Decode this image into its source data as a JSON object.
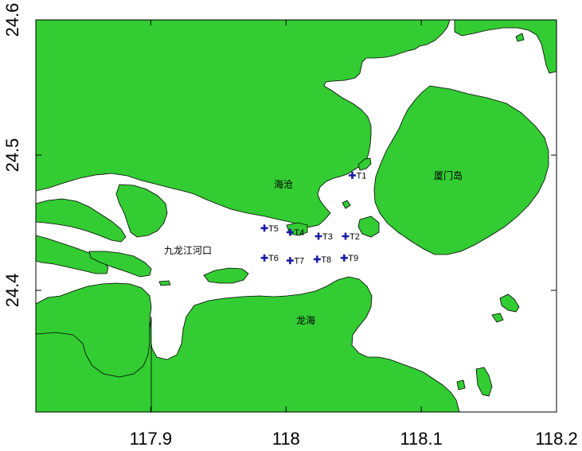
{
  "map": {
    "x_ticks": [
      {
        "value": 117.9,
        "label": "117.9"
      },
      {
        "value": 118.0,
        "label": "118"
      },
      {
        "value": 118.1,
        "label": "118.1"
      },
      {
        "value": 118.2,
        "label": "118.2"
      }
    ],
    "y_ticks": [
      {
        "value": 24.6,
        "label": "24.6"
      },
      {
        "value": 24.5,
        "label": "24.5"
      },
      {
        "value": 24.4,
        "label": "24.4"
      }
    ],
    "xlim": [
      117.815,
      118.2
    ],
    "ylim": [
      24.31,
      24.6
    ],
    "land_color": "#33cc33",
    "marker_color": "#1a1aa6"
  },
  "places": [
    {
      "name": "海沧"
    },
    {
      "name": "厦门岛"
    },
    {
      "name": "九龙江河口"
    },
    {
      "name": "龙海"
    }
  ],
  "stations": [
    {
      "label": "T1",
      "lon": 118.049,
      "lat": 24.485
    },
    {
      "label": "T2",
      "lon": 118.044,
      "lat": 24.44
    },
    {
      "label": "T3",
      "lon": 118.024,
      "lat": 24.44
    },
    {
      "label": "T4",
      "lon": 118.003,
      "lat": 24.443
    },
    {
      "label": "T5",
      "lon": 117.984,
      "lat": 24.446
    },
    {
      "label": "T6",
      "lon": 117.984,
      "lat": 24.424
    },
    {
      "label": "T7",
      "lon": 118.003,
      "lat": 24.422
    },
    {
      "label": "T8",
      "lon": 118.023,
      "lat": 24.423
    },
    {
      "label": "T9",
      "lon": 118.043,
      "lat": 24.424
    }
  ]
}
